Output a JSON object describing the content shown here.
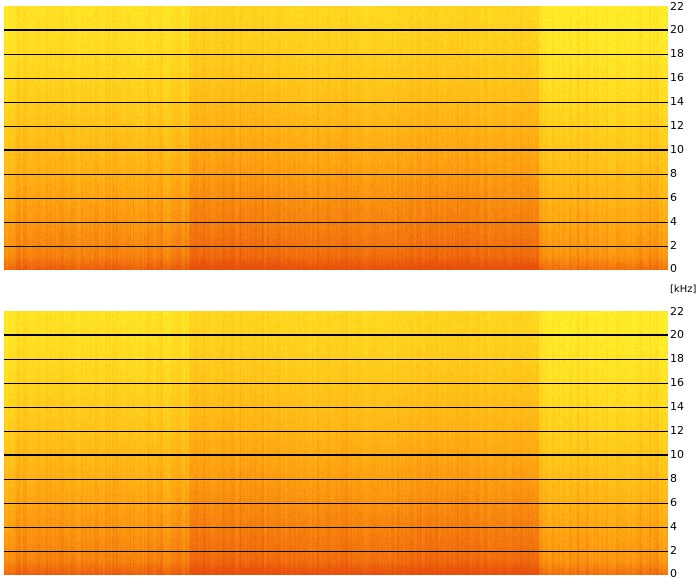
{
  "chart_data": [
    {
      "type": "heatmap",
      "title": "",
      "xlabel": "",
      "ylabel": "[kHz]",
      "ylim": [
        0,
        22
      ],
      "yticks": [
        0,
        2,
        4,
        6,
        8,
        10,
        12,
        14,
        16,
        18,
        20,
        22
      ],
      "ytick_labels": [
        "0",
        "2",
        "4",
        "6",
        "8",
        "10",
        "12",
        "14",
        "16",
        "18",
        "20",
        "22"
      ],
      "major_gridlines": [
        10,
        20
      ],
      "grid": true,
      "colormap": [
        "#ffff30",
        "#ffd21e",
        "#ffa812",
        "#f47a0e",
        "#e8500c"
      ],
      "channel": 1
    },
    {
      "type": "heatmap",
      "title": "",
      "xlabel": "",
      "ylabel": "[kHz]",
      "ylim": [
        0,
        22
      ],
      "yticks": [
        0,
        2,
        4,
        6,
        8,
        10,
        12,
        14,
        16,
        18,
        20,
        22
      ],
      "ytick_labels": [
        "0",
        "2",
        "4",
        "6",
        "8",
        "10",
        "12",
        "14",
        "16",
        "18",
        "20",
        "22"
      ],
      "major_gridlines": [
        10,
        20
      ],
      "grid": true,
      "colormap": [
        "#ffff30",
        "#ffd21e",
        "#ffa812",
        "#f47a0e",
        "#e8500c"
      ],
      "channel": 2
    }
  ],
  "axis": {
    "unit_label": "[kHz]"
  }
}
